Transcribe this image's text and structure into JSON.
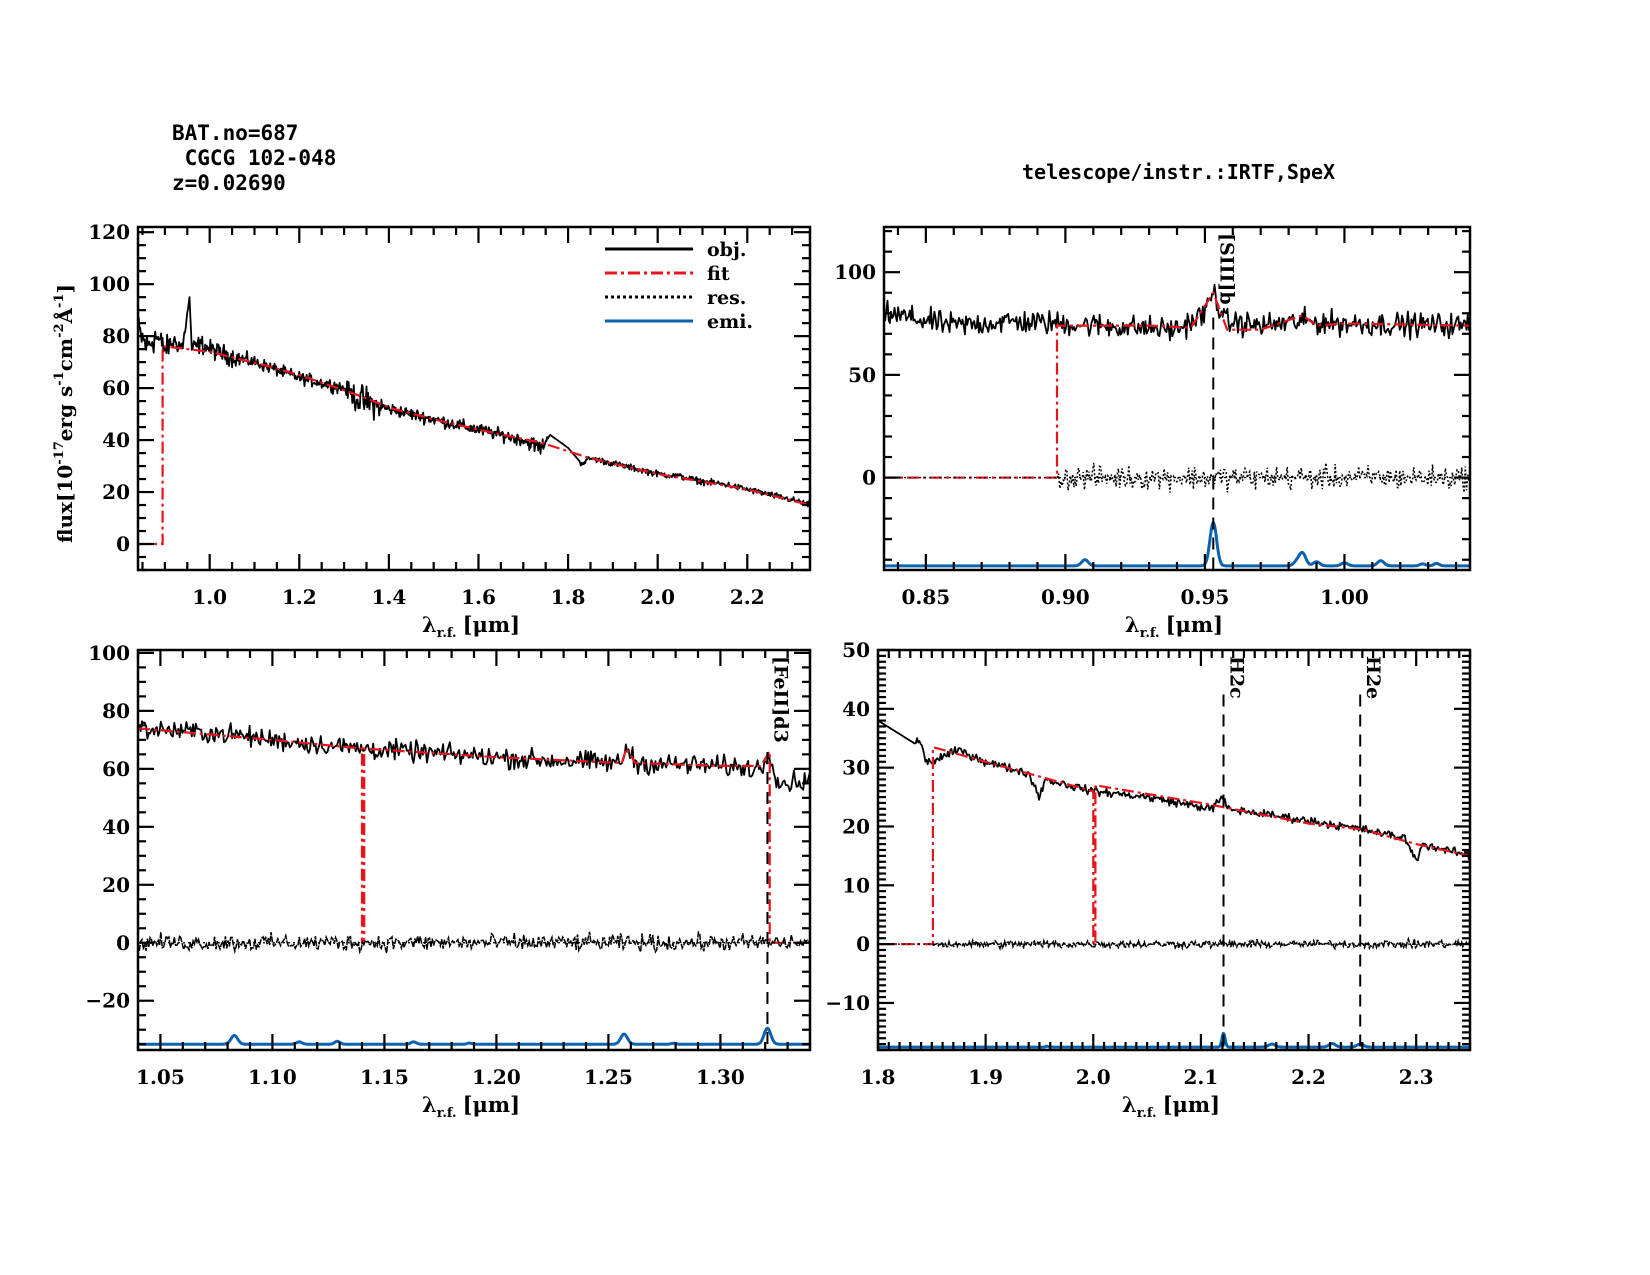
{
  "header": {
    "bat_no": "BAT.no=687",
    "object_name": " CGCG 102-048",
    "redshift": "z=0.02690",
    "telescope": "telescope/instr.:IRTF,SpeX"
  },
  "colors": {
    "obj": "#000000",
    "fit": "#e8141c",
    "res": "#000000",
    "emi": "#0b63b0",
    "line_marker": "#000000"
  },
  "legend": {
    "placement": "top-right",
    "entries": [
      {
        "label": "obj.",
        "series": "obj",
        "style": "solid"
      },
      {
        "label": "fit",
        "series": "fit",
        "style": "dashdot"
      },
      {
        "label": "res.",
        "series": "res",
        "style": "dotted"
      },
      {
        "label": "emi.",
        "series": "emi",
        "style": "solid"
      }
    ]
  },
  "chart_data": [
    {
      "id": "full",
      "type": "line",
      "title": "",
      "xlabel": "λr.f. [μm]",
      "xlabel_main": "λ",
      "xlabel_sub": "r.f.",
      "xlabel_unit": "[μm]",
      "ylabel": "flux[10^-17 erg s^-1 cm^-2 Å^-1]",
      "ylabel_parts": [
        "flux[10",
        "-17",
        "erg s",
        "-1",
        "cm",
        "-2",
        "Å",
        "-1",
        "]"
      ],
      "xlim": [
        0.84,
        2.34
      ],
      "ylim": [
        -10,
        122
      ],
      "xticks": [
        1.0,
        1.2,
        1.4,
        1.6,
        1.8,
        2.0,
        2.2
      ],
      "xtick_labels": [
        "1.0",
        "1.2",
        "1.4",
        "1.6",
        "1.8",
        "2.0",
        "2.2"
      ],
      "xminor": 0.05,
      "yticks": [
        0,
        20,
        40,
        60,
        80,
        100,
        120
      ],
      "ytick_labels": [
        "0",
        "20",
        "40",
        "60",
        "80",
        "100",
        "120"
      ],
      "yminor": 5,
      "obj": {
        "x": [
          0.84,
          0.86,
          0.88,
          0.9,
          0.92,
          0.94,
          0.955,
          0.96,
          0.98,
          1.0,
          1.05,
          1.1,
          1.15,
          1.2,
          1.25,
          1.3,
          1.33,
          1.36,
          1.4,
          1.45,
          1.5,
          1.55,
          1.6,
          1.65,
          1.7,
          1.74,
          1.76,
          1.8,
          1.83,
          1.85,
          1.9,
          1.95,
          2.0,
          2.05,
          2.1,
          2.15,
          2.2,
          2.25,
          2.3,
          2.34
        ],
        "y": [
          82,
          76,
          80,
          75,
          78,
          76,
          95,
          75,
          77,
          75,
          72,
          70,
          67,
          64,
          62,
          60,
          56,
          54,
          52,
          50,
          48,
          46,
          44,
          42,
          40,
          37,
          42,
          37,
          31,
          33,
          31,
          29,
          27,
          26,
          24,
          23,
          21,
          19,
          17,
          15
        ]
      },
      "obj_noise": [
        6,
        5,
        5,
        4,
        3,
        3,
        0,
        3,
        3,
        3,
        3,
        2,
        2,
        2,
        2,
        2,
        5,
        5,
        2,
        2,
        2,
        2,
        2,
        2,
        2,
        3,
        0,
        1,
        1,
        1,
        1,
        1,
        1,
        1,
        1,
        1,
        1,
        1,
        1,
        1
      ],
      "fit": {
        "x": [
          0.84,
          0.895,
          0.895,
          0.9,
          1.0,
          1.14,
          1.14,
          1.2,
          1.32,
          1.32,
          1.41,
          1.41,
          1.5,
          1.6,
          1.74,
          1.74,
          1.85,
          1.85,
          2.0,
          2.0,
          2.1,
          2.2,
          2.34
        ],
        "y": [
          0,
          0,
          76,
          76,
          74,
          68,
          68,
          65,
          58,
          58,
          52,
          52,
          48,
          44,
          39,
          39,
          33,
          33,
          27,
          27,
          24,
          21,
          15
        ]
      },
      "fit_drops": [
        [
          0.84,
          0.895
        ],
        [
          1.14,
          1.14
        ],
        [
          1.32,
          1.41
        ],
        [
          1.74,
          1.85
        ],
        [
          2.0,
          2.0
        ]
      ],
      "res": null,
      "emi": null,
      "markers": []
    },
    {
      "id": "zoom-0.835-1.045",
      "type": "line",
      "title": "",
      "xlabel": "λr.f. [μm]",
      "xlabel_main": "λ",
      "xlabel_sub": "r.f.",
      "xlabel_unit": "[μm]",
      "ylabel": "",
      "xlim": [
        0.835,
        1.045
      ],
      "ylim": [
        -45,
        122
      ],
      "xticks": [
        0.85,
        0.9,
        0.95,
        1.0
      ],
      "xtick_labels": [
        "0.85",
        "0.90",
        "0.95",
        "1.00"
      ],
      "xminor": 0.01,
      "yticks": [
        0,
        50,
        100
      ],
      "ytick_labels": [
        "0",
        "50",
        "100"
      ],
      "yminor": 10,
      "obj_level": [
        [
          0.835,
          80
        ],
        [
          0.86,
          74
        ],
        [
          0.88,
          76
        ],
        [
          0.9,
          75
        ],
        [
          0.94,
          72
        ],
        [
          0.95,
          80
        ],
        [
          0.953,
          91
        ],
        [
          0.957,
          76
        ],
        [
          0.97,
          74
        ],
        [
          0.985,
          76
        ],
        [
          1.0,
          75
        ],
        [
          1.045,
          74
        ]
      ],
      "obj_noise_amp": 5,
      "fit": {
        "x": [
          0.835,
          0.897,
          0.897,
          0.9,
          0.93,
          0.945,
          0.953,
          0.958,
          0.97,
          0.985,
          0.99,
          1.0,
          1.045
        ],
        "y": [
          0,
          0,
          74,
          74,
          74,
          73,
          90,
          72,
          72,
          79,
          74,
          75,
          74
        ]
      },
      "res_noise_amp": 5,
      "res_start": 0.897,
      "emi_base": -43,
      "emi_peaks": [
        [
          0.907,
          3,
          0.0012
        ],
        [
          0.953,
          21,
          0.0012
        ],
        [
          0.983,
          2,
          0.0012
        ],
        [
          0.985,
          6,
          0.0012
        ],
        [
          0.99,
          2,
          0.0012
        ],
        [
          1.0,
          1.5,
          0.0012
        ],
        [
          1.013,
          2.5,
          0.0012
        ],
        [
          1.028,
          1,
          0.001
        ],
        [
          1.033,
          1.2,
          0.001
        ]
      ],
      "markers": [
        {
          "x": 0.953,
          "label": "[SIII]b"
        }
      ]
    },
    {
      "id": "zoom-1.04-1.34",
      "type": "line",
      "title": "",
      "xlabel": "λr.f. [μm]",
      "xlabel_main": "λ",
      "xlabel_sub": "r.f.",
      "xlabel_unit": "[μm]",
      "ylabel": "",
      "xlim": [
        1.04,
        1.34
      ],
      "ylim": [
        -37,
        101
      ],
      "xticks": [
        1.05,
        1.1,
        1.15,
        1.2,
        1.25,
        1.3
      ],
      "xtick_labels": [
        "1.05",
        "1.10",
        "1.15",
        "1.20",
        "1.25",
        "1.30"
      ],
      "xminor": 0.01,
      "yticks": [
        -20,
        0,
        20,
        40,
        60,
        80,
        100
      ],
      "ytick_labels": [
        "−20",
        "0",
        "20",
        "40",
        "60",
        "80",
        "100"
      ],
      "yminor": 5,
      "obj_level": [
        [
          1.04,
          74
        ],
        [
          1.08,
          72
        ],
        [
          1.1,
          70
        ],
        [
          1.14,
          67
        ],
        [
          1.18,
          65
        ],
        [
          1.22,
          63
        ],
        [
          1.256,
          62
        ],
        [
          1.258,
          68
        ],
        [
          1.262,
          62
        ],
        [
          1.3,
          61
        ],
        [
          1.318,
          60
        ],
        [
          1.322,
          66
        ],
        [
          1.326,
          55
        ],
        [
          1.34,
          56
        ]
      ],
      "obj_noise_amp": 3,
      "fit": {
        "x": [
          1.04,
          1.1,
          1.14,
          1.14,
          1.141,
          1.141,
          1.2,
          1.256,
          1.258,
          1.262,
          1.3,
          1.318,
          1.322,
          1.322,
          1.323,
          1.34
        ],
        "y": [
          74,
          70,
          67,
          0,
          0,
          67,
          64,
          62,
          67,
          62,
          61,
          61,
          66,
          0,
          0,
          0
        ]
      },
      "res_noise_amp": 2.5,
      "res_start": 1.04,
      "emi_base": -35,
      "emi_peaks": [
        [
          1.083,
          3,
          0.0015
        ],
        [
          1.112,
          0.8,
          0.0012
        ],
        [
          1.129,
          1,
          0.0012
        ],
        [
          1.163,
          0.8,
          0.0012
        ],
        [
          1.188,
          0.4,
          0.001
        ],
        [
          1.257,
          3.5,
          0.0015
        ],
        [
          1.279,
          0.3,
          0.001
        ],
        [
          1.321,
          5.5,
          0.0015
        ]
      ],
      "markers": [
        {
          "x": 1.321,
          "label": "[FeII]d3"
        }
      ]
    },
    {
      "id": "zoom-1.8-2.35",
      "type": "line",
      "title": "",
      "xlabel": "λr.f. [μm]",
      "xlabel_main": "λ",
      "xlabel_sub": "r.f.",
      "xlabel_unit": "[μm]",
      "ylabel": "",
      "xlim": [
        1.8,
        2.35
      ],
      "ylim": [
        -18,
        50
      ],
      "xticks": [
        1.8,
        1.9,
        2.0,
        2.1,
        2.2,
        2.3
      ],
      "xtick_labels": [
        "1.8",
        "1.9",
        "2.0",
        "2.1",
        "2.2",
        "2.3"
      ],
      "xminor": 0.01,
      "yticks": [
        -10,
        0,
        10,
        20,
        30,
        40,
        50
      ],
      "ytick_labels": [
        "−10",
        "0",
        "10",
        "20",
        "30",
        "40",
        "50"
      ],
      "yminor": 1,
      "obj_level": [
        [
          1.8,
          38
        ],
        [
          1.835,
          34
        ],
        [
          1.838,
          35
        ],
        [
          1.845,
          31
        ],
        [
          1.85,
          31
        ],
        [
          1.875,
          33
        ],
        [
          1.9,
          31
        ],
        [
          1.94,
          29
        ],
        [
          1.95,
          25
        ],
        [
          1.955,
          28
        ],
        [
          2.0,
          26
        ],
        [
          2.05,
          25
        ],
        [
          2.11,
          23
        ],
        [
          2.12,
          25
        ],
        [
          2.125,
          23
        ],
        [
          2.2,
          21
        ],
        [
          2.25,
          19.5
        ],
        [
          2.29,
          18
        ],
        [
          2.3,
          14
        ],
        [
          2.305,
          17
        ],
        [
          2.35,
          15
        ]
      ],
      "obj_noise_amp": 0.6,
      "fit": {
        "x": [
          1.8,
          1.85,
          1.85,
          1.851,
          1.851,
          1.9,
          2.0,
          2.0,
          2.002,
          2.002,
          2.1,
          2.2,
          2.25,
          2.3,
          2.35,
          2.35
        ],
        "y": [
          0,
          0,
          0,
          0,
          33.5,
          31,
          26,
          0,
          0,
          27,
          24,
          20.5,
          19.5,
          17,
          15,
          8
        ]
      },
      "res_noise_amp": 0.6,
      "res_start": 1.85,
      "emi_base": -17.5,
      "emi_peaks": [
        [
          1.957,
          0.15,
          0.001
        ],
        [
          2.121,
          2.3,
          0.0015
        ],
        [
          2.166,
          0.5,
          0.003
        ],
        [
          2.222,
          0.6,
          0.003
        ],
        [
          2.248,
          0.5,
          0.003
        ]
      ],
      "markers": [
        {
          "x": 2.121,
          "label": "H2c"
        },
        {
          "x": 2.248,
          "label": "H2e"
        }
      ]
    }
  ]
}
